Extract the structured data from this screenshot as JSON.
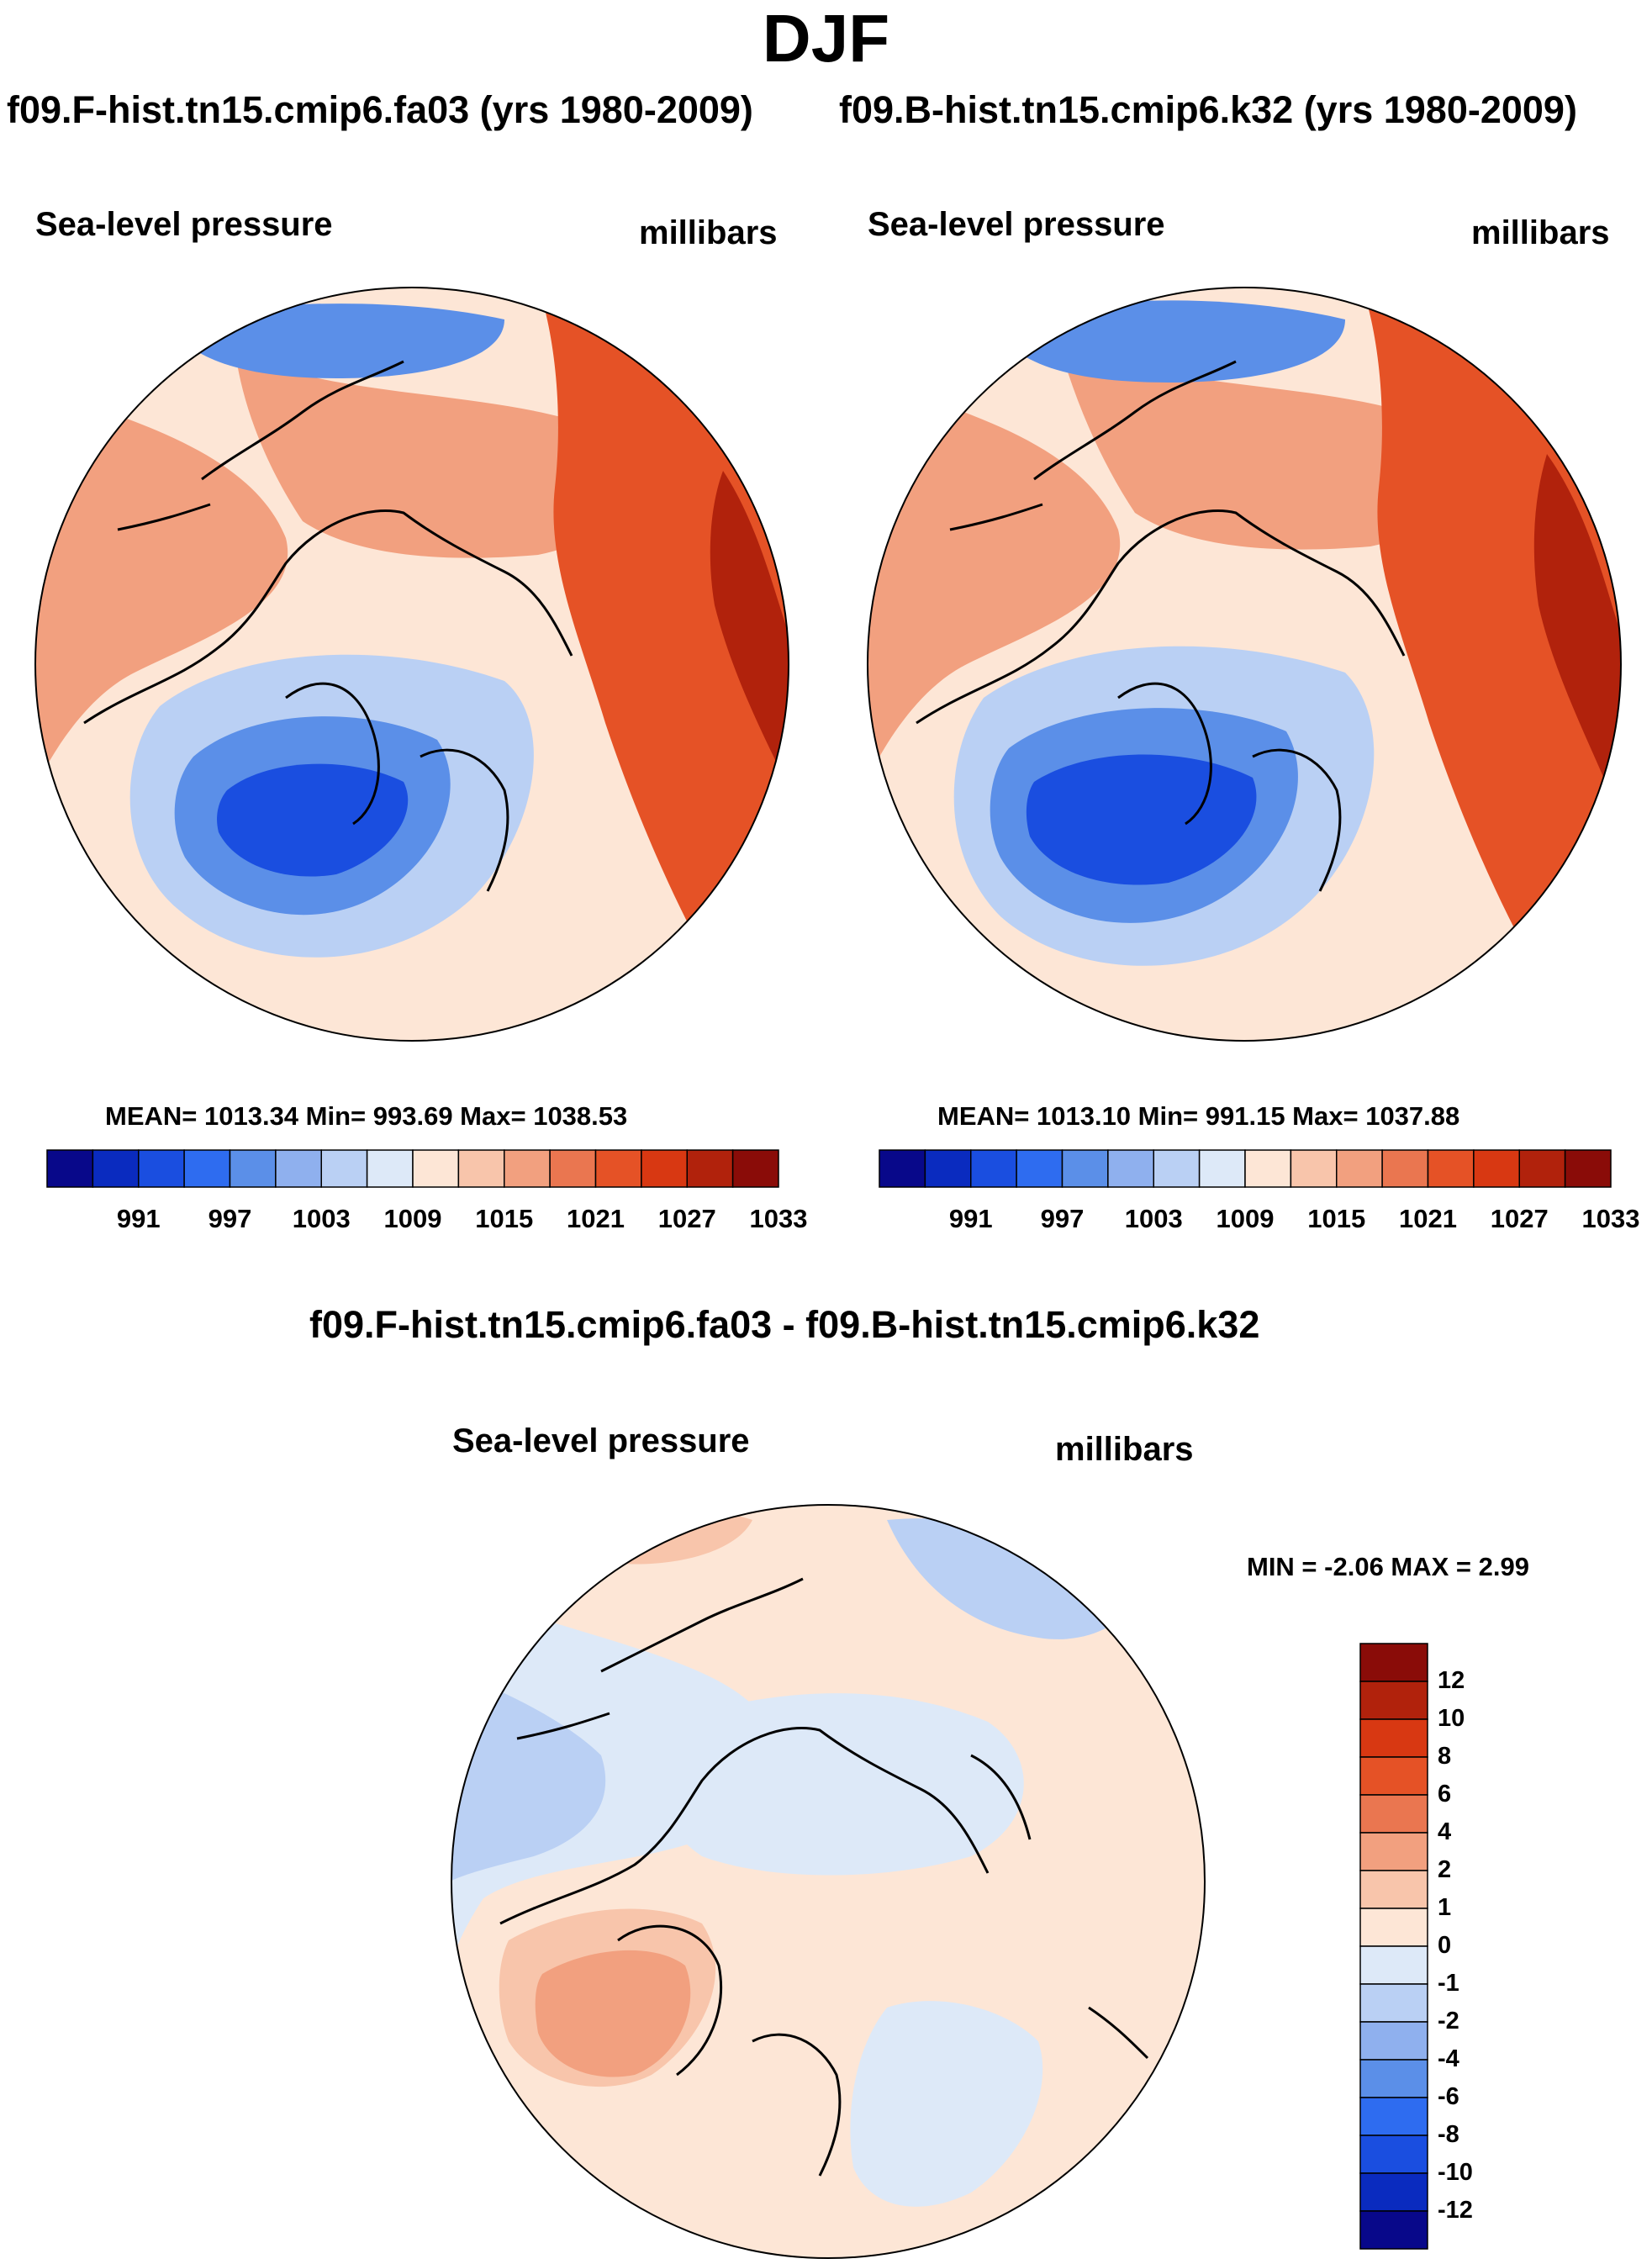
{
  "main_title": "DJF",
  "run_titles": {
    "left": "f09.F-hist.tn15.cmip6.fa03 (yrs 1980-2009)",
    "right": "f09.B-hist.tn15.cmip6.k32 (yrs 1980-2009)"
  },
  "panels": [
    {
      "variable": "Sea-level pressure",
      "units": "millibars",
      "stats": "MEAN= 1013.34  Min= 993.69  Max= 1038.53"
    },
    {
      "variable": "Sea-level pressure",
      "units": "millibars",
      "stats": "MEAN= 1013.10  Min= 991.15  Max= 1037.88"
    }
  ],
  "diff": {
    "title": "f09.F-hist.tn15.cmip6.fa03 - f09.B-hist.tn15.cmip6.k32",
    "variable": "Sea-level pressure",
    "units": "millibars",
    "minmax": "MIN =  -2.06 MAX =   2.99"
  },
  "colorbar_abs": {
    "colors": [
      "#08088a",
      "#0a2bbf",
      "#1a4ee0",
      "#2e6cf0",
      "#5b8fe8",
      "#8fb0ee",
      "#bad0f4",
      "#dde9f8",
      "#fde6d6",
      "#f8c5ab",
      "#f2a07f",
      "#ea7650",
      "#e55226",
      "#d83812",
      "#b1220c",
      "#8a0c08"
    ],
    "labels": [
      "991",
      "997",
      "1003",
      "1009",
      "1015",
      "1021",
      "1027",
      "1033"
    ]
  },
  "colorbar_diff": {
    "colors": [
      "#08088a",
      "#0a2bbf",
      "#1a4ee0",
      "#2e6cf0",
      "#5b8fe8",
      "#8fb0ee",
      "#bad0f4",
      "#dde9f8",
      "#fde6d6",
      "#f8c5ab",
      "#f2a07f",
      "#ea7650",
      "#e55226",
      "#d83812",
      "#b1220c",
      "#8a0c08"
    ],
    "labels": [
      "12",
      "10",
      "8",
      "6",
      "4",
      "2",
      "1",
      "0",
      "-1",
      "-2",
      "-4",
      "-6",
      "-8",
      "-10",
      "-12"
    ]
  },
  "map_colors": {
    "deep_low": "#1a4ee0",
    "low": "#5b8fe8",
    "mid_low": "#bad0f4",
    "near": "#fde6d6",
    "high": "#f2a07f",
    "higher": "#e55226",
    "max": "#b1220c"
  },
  "chart_data": [
    {
      "type": "filled-contour-map",
      "projection": "north-polar-stereographic",
      "title": "Sea-level pressure",
      "units": "millibars",
      "case": "f09.F-hist.tn15.cmip6.fa03 (yrs 1980-2009)",
      "mean": 1013.34,
      "min": 993.69,
      "max": 1038.53,
      "contour_levels": [
        991,
        994,
        997,
        1000,
        1003,
        1006,
        1009,
        1012,
        1015,
        1018,
        1021,
        1024,
        1027,
        1030,
        1033
      ]
    },
    {
      "type": "filled-contour-map",
      "projection": "north-polar-stereographic",
      "title": "Sea-level pressure",
      "units": "millibars",
      "case": "f09.B-hist.tn15.cmip6.k32 (yrs 1980-2009)",
      "mean": 1013.1,
      "min": 991.15,
      "max": 1037.88,
      "contour_levels": [
        991,
        994,
        997,
        1000,
        1003,
        1006,
        1009,
        1012,
        1015,
        1018,
        1021,
        1024,
        1027,
        1030,
        1033
      ]
    },
    {
      "type": "filled-contour-map",
      "projection": "north-polar-stereographic",
      "title": "Sea-level pressure",
      "units": "millibars",
      "case": "f09.F-hist.tn15.cmip6.fa03 - f09.B-hist.tn15.cmip6.k32",
      "min": -2.06,
      "max": 2.99,
      "contour_levels": [
        -12,
        -10,
        -8,
        -6,
        -4,
        -2,
        -1,
        0,
        1,
        2,
        4,
        6,
        8,
        10,
        12
      ]
    }
  ]
}
